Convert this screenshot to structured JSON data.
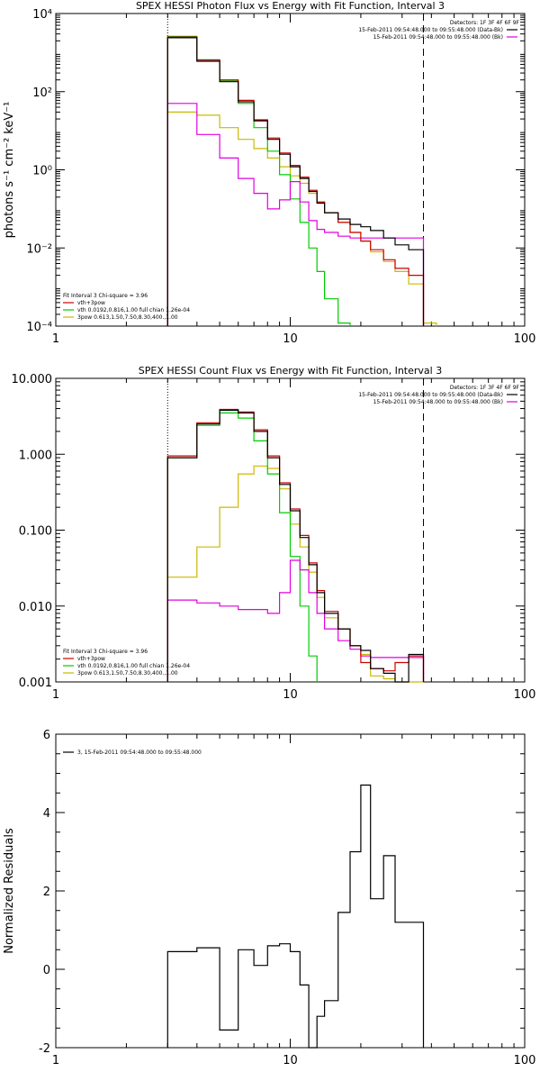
{
  "chart_data": [
    {
      "type": "line",
      "title": "SPEX HESSI Photon Flux vs Energy with Fit Function, Interval 3",
      "xlabel": "",
      "ylabel": "photons s⁻¹ cm⁻² keV⁻¹",
      "xscale": "log",
      "yscale": "log",
      "xlim": [
        1,
        100
      ],
      "ylim": [
        0.0001,
        10000
      ],
      "xticks": [
        "1",
        "10",
        "100"
      ],
      "yticks": [
        "10⁻⁴",
        "10⁻²",
        "10⁰",
        "10²",
        "10⁴"
      ],
      "legend_top": {
        "header": "Detectors: 1F 3F 4F 6F 9F",
        "entries": [
          {
            "label": "15-Feb-2011 09:54:48.000 to 09:55:48.000 (Data-Bk)",
            "color": "#000000"
          },
          {
            "label": "15-Feb-2011 09:54:48.000 to 09:55:48.000 (Bk)",
            "color": "#e000e0"
          }
        ]
      },
      "legend_bottom": {
        "header": "Fit Interval 3   Chi-square = 3.96",
        "entries": [
          {
            "label": "vth+3pow",
            "color": "#cc0000"
          },
          {
            "label": "vth 0.0192,0.816,1.00  full chian 1.26e-04",
            "color": "#00cc00"
          },
          {
            "label": "3pow 0.613,1.50,7.50,8.30,400.,1.00",
            "color": "#ccb800"
          }
        ]
      },
      "fit_range_lines": {
        "low": 3.0,
        "high": 37.0
      },
      "edges": [
        3.0,
        4.0,
        5.0,
        6.0,
        7.0,
        8.0,
        9.0,
        10.0,
        11.0,
        12.0,
        13.0,
        14.0,
        16.0,
        18.0,
        20.0,
        22.0,
        25.0,
        28.0,
        32.0,
        37.0,
        42.0
      ],
      "series": [
        {
          "name": "Data-Bk",
          "color": "#000000",
          "values": [
            2400,
            600,
            180,
            55,
            18,
            6.0,
            2.5,
            1.2,
            0.6,
            0.28,
            0.14,
            0.08,
            0.055,
            0.04,
            0.035,
            0.028,
            0.018,
            0.012,
            0.009,
            null
          ]
        },
        {
          "name": "vth+3pow",
          "color": "#cc0000",
          "values": [
            2500,
            650,
            200,
            60,
            19,
            6.5,
            2.7,
            1.3,
            0.65,
            0.3,
            0.15,
            0.08,
            0.045,
            0.025,
            0.015,
            0.009,
            0.005,
            0.003,
            0.002,
            null
          ]
        },
        {
          "name": "vth",
          "color": "#00cc00",
          "values": [
            2600,
            650,
            190,
            50,
            12,
            3.0,
            0.75,
            0.18,
            0.045,
            0.01,
            0.0025,
            0.0005,
            0.00012,
            null,
            null,
            null,
            null,
            null,
            null,
            null
          ]
        },
        {
          "name": "3pow",
          "color": "#ccb800",
          "values": [
            30,
            25,
            12,
            6,
            3.5,
            2.0,
            1.2,
            0.7,
            0.45,
            0.25,
            0.15,
            0.08,
            0.045,
            0.025,
            0.015,
            0.008,
            0.0045,
            0.0025,
            0.0012,
            0.00012
          ]
        },
        {
          "name": "Bk",
          "color": "#e000e0",
          "values": [
            50,
            8,
            2.0,
            0.6,
            0.25,
            0.1,
            0.17,
            0.5,
            0.15,
            0.05,
            0.03,
            0.025,
            0.02,
            0.018,
            0.018,
            0.018,
            0.018,
            0.018,
            0.018,
            null
          ]
        }
      ]
    },
    {
      "type": "line",
      "title": "SPEX HESSI Count Flux vs Energy with Fit Function, Interval 3",
      "xlabel": "",
      "ylabel": "",
      "xscale": "log",
      "yscale": "log",
      "xlim": [
        1,
        100
      ],
      "ylim": [
        0.001,
        10
      ],
      "xticks": [
        "1",
        "10",
        "100"
      ],
      "yticks": [
        "0.001",
        "0.010",
        "0.100",
        "1.000",
        "10.000"
      ],
      "legend_top": {
        "header": "Detectors: 1F 3F 4F 6F 9F",
        "entries": [
          {
            "label": "15-Feb-2011 09:54:48.000 to 09:55:48.000 (Data-Bk)",
            "color": "#000000"
          },
          {
            "label": "15-Feb-2011 09:54:48.000 to 09:55:48.000 (Bk)",
            "color": "#e000e0"
          }
        ]
      },
      "legend_bottom": {
        "header": "Fit Interval 3   Chi-square = 3.96",
        "entries": [
          {
            "label": "vth+3pow",
            "color": "#cc0000"
          },
          {
            "label": "vth 0.0192,0.816,1.00  full chian 1.26e-04",
            "color": "#00cc00"
          },
          {
            "label": "3pow 0.613,1.50,7.50,8.30,400.,1.00",
            "color": "#ccb800"
          }
        ]
      },
      "fit_range_lines": {
        "low": 3.0,
        "high": 37.0
      },
      "edges": [
        3.0,
        4.0,
        5.0,
        6.0,
        7.0,
        8.0,
        9.0,
        10.0,
        11.0,
        12.0,
        13.0,
        14.0,
        16.0,
        18.0,
        20.0,
        22.0,
        25.0,
        28.0,
        32.0,
        37.0,
        42.0
      ],
      "series": [
        {
          "name": "Data-Bk",
          "color": "#000000",
          "values": [
            0.9,
            2.5,
            3.8,
            3.5,
            2.0,
            0.9,
            0.4,
            0.18,
            0.08,
            0.035,
            0.015,
            0.008,
            0.005,
            0.003,
            0.0026,
            0.0015,
            0.0013,
            0.001,
            0.0023,
            null
          ]
        },
        {
          "name": "vth+3pow",
          "color": "#cc0000",
          "values": [
            0.95,
            2.6,
            3.9,
            3.6,
            2.1,
            0.95,
            0.42,
            0.19,
            0.085,
            0.037,
            0.016,
            0.0085,
            0.005,
            0.003,
            0.0018,
            0.0015,
            0.0014,
            0.0018,
            0.0022,
            null
          ]
        },
        {
          "name": "vth",
          "color": "#00cc00",
          "values": [
            0.9,
            2.4,
            3.5,
            3.0,
            1.5,
            0.55,
            0.17,
            0.045,
            0.01,
            0.0022,
            null,
            null,
            null,
            null,
            null,
            null,
            null,
            null,
            null,
            null
          ]
        },
        {
          "name": "3pow",
          "color": "#ccb800",
          "values": [
            0.024,
            0.06,
            0.2,
            0.55,
            0.7,
            0.65,
            0.35,
            0.12,
            0.06,
            0.028,
            0.013,
            0.007,
            0.005,
            0.003,
            0.0023,
            0.0012,
            0.0011,
            0.0009,
            0.0007,
            null
          ]
        },
        {
          "name": "Bk",
          "color": "#e000e0",
          "values": [
            0.012,
            0.011,
            0.01,
            0.009,
            0.009,
            0.008,
            0.015,
            0.04,
            0.03,
            0.015,
            0.008,
            0.005,
            0.0035,
            0.0027,
            0.0022,
            0.0021,
            0.0021,
            0.0021,
            0.0021,
            null
          ]
        }
      ]
    },
    {
      "type": "line",
      "title": "",
      "xlabel": "",
      "ylabel": "Normalized Residuals",
      "xscale": "log",
      "yscale": "linear",
      "xlim": [
        1,
        100
      ],
      "ylim": [
        -2,
        6
      ],
      "xticks": [
        "1",
        "10",
        "100"
      ],
      "yticks": [
        "-2",
        "0",
        "2",
        "4",
        "6"
      ],
      "legend_top": {
        "header": "",
        "entries": [
          {
            "label": "3, 15-Feb-2011 09:54:48.000 to 09:55:48.000",
            "color": "#000000"
          }
        ]
      },
      "edges": [
        3.0,
        4.0,
        5.0,
        6.0,
        7.0,
        8.0,
        9.0,
        10.0,
        11.0,
        12.0,
        13.0,
        14.0,
        16.0,
        18.0,
        20.0,
        22.0,
        25.0,
        28.0,
        32.0,
        37.0
      ],
      "series": [
        {
          "name": "",
          "color": "#000000",
          "values": [
            0.45,
            0.55,
            -1.55,
            0.5,
            0.1,
            0.6,
            0.65,
            0.45,
            -0.4,
            -2.0,
            -1.2,
            -0.8,
            1.45,
            3.0,
            4.7,
            1.8,
            2.9,
            1.2,
            1.2
          ]
        }
      ]
    }
  ]
}
